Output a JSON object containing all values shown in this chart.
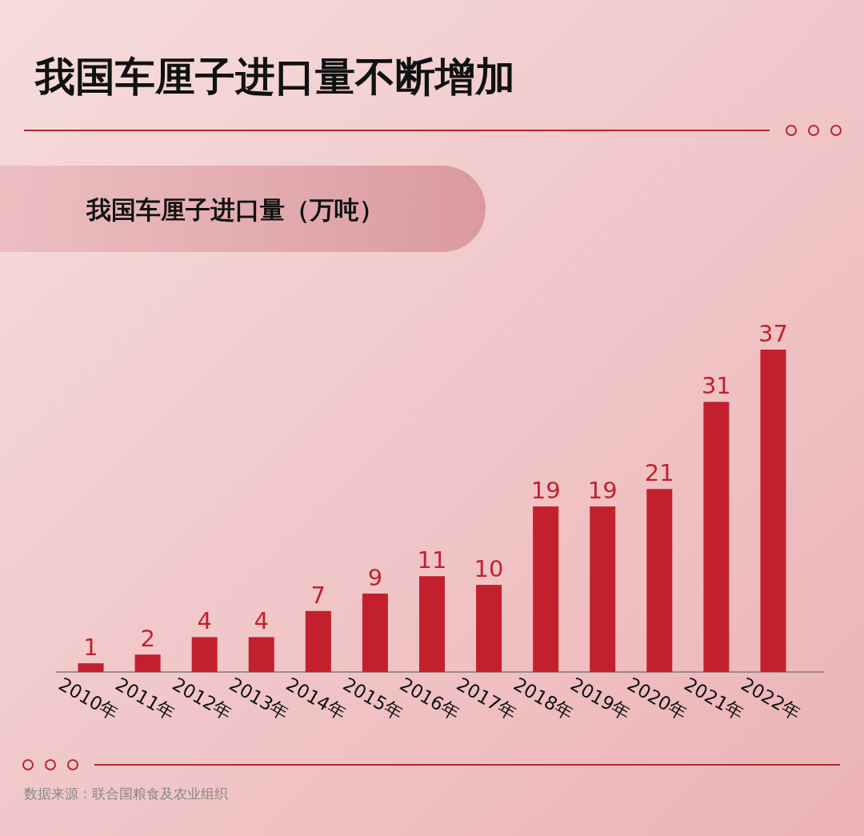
{
  "chart_data": {
    "type": "bar",
    "title": "我国车厘子进口量不断增加",
    "subtitle": "我国车厘子进口量（万吨）",
    "categories": [
      "2010年",
      "2011年",
      "2012年",
      "2013年",
      "2014年",
      "2015年",
      "2016年",
      "2017年",
      "2018年",
      "2019年",
      "2020年",
      "2021年",
      "2022年"
    ],
    "values": [
      1,
      2,
      4,
      4,
      7,
      9,
      11,
      10,
      19,
      19,
      21,
      31,
      37
    ],
    "color": "#c3202e",
    "data_labels": true,
    "annotations": [
      "数据来源：联合国粮食及农业组织"
    ]
  }
}
